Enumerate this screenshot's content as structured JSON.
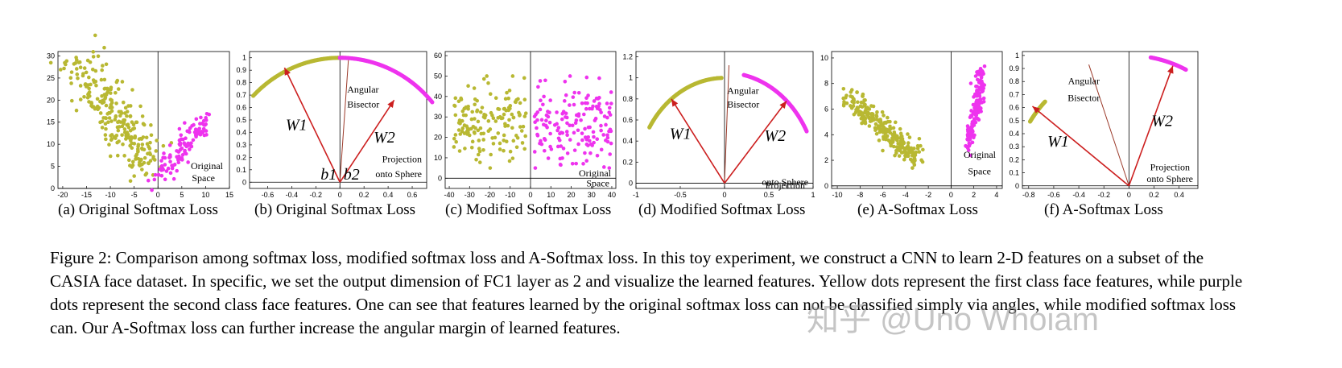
{
  "figure": {
    "caption": "Figure 2: Comparison among softmax loss, modified softmax loss and A-Softmax loss. In this toy experiment, we construct a CNN to learn 2-D features on a subset of the CASIA face dataset. In specific, we set the output dimension of FC1 layer as 2 and visualize the learned features. Yellow dots represent the first class face features, while purple dots represent the second class face features. One can see that features learned by the original softmax loss can not be classified simply via angles, while modified softmax loss can. Our A-Softmax loss can further increase the angular margin of learned features.",
    "watermark": "知乎 @Uno Whoiam",
    "colors": {
      "class1": "#b8b832",
      "class2": "#ee33ee",
      "arrow": "#cc1f1f",
      "bisector": "#9b3a2a"
    }
  },
  "chart_data": [
    {
      "type": "scatter",
      "caption": "(a) Original Softmax Loss",
      "xticks": [
        "-20",
        "-15",
        "-10",
        "-5",
        "0",
        "5",
        "10",
        "15"
      ],
      "yticks": [
        "0",
        "5",
        "10",
        "15",
        "20",
        "25",
        "30"
      ],
      "xlim": [
        -21,
        15
      ],
      "ylim": [
        0,
        31
      ],
      "annotations": [
        "Original",
        "Space"
      ],
      "series": [
        {
          "class": 1,
          "shape": "diagonal band",
          "from": [
            -16,
            28
          ],
          "to": [
            -2,
            5
          ]
        },
        {
          "class": 2,
          "shape": "diagonal band",
          "from": [
            0,
            2
          ],
          "to": [
            10,
            16
          ]
        }
      ]
    },
    {
      "type": "scatter",
      "caption": "(b) Original Softmax Loss",
      "xticks": [
        "-0.6",
        "-0.4",
        "-0.2",
        "0",
        "0.2",
        "0.4",
        "0.6"
      ],
      "yticks": [
        "0",
        "0.1",
        "0.2",
        "0.3",
        "0.4",
        "0.5",
        "0.6",
        "0.7",
        "0.8",
        "0.9",
        "1"
      ],
      "xlim": [
        -0.75,
        0.72
      ],
      "ylim": [
        -0.05,
        1.05
      ],
      "annotations": [
        "Angular",
        "Bisector",
        "Projection",
        "onto Sphere"
      ],
      "weights": [
        "W1",
        "W2"
      ],
      "biases": [
        "b1",
        "b2"
      ],
      "arc": [
        {
          "class": 1,
          "theta_deg": [
            86,
            136
          ]
        },
        {
          "class": 2,
          "theta_deg": [
            40,
            90
          ]
        }
      ]
    },
    {
      "type": "scatter",
      "caption": "(c) Modified Softmax Loss",
      "xticks": [
        "-40",
        "-30",
        "-20",
        "-10",
        "0",
        "10",
        "20",
        "30",
        "40"
      ],
      "yticks": [
        "0",
        "10",
        "20",
        "30",
        "40",
        "50",
        "60"
      ],
      "xlim": [
        -42,
        42
      ],
      "ylim": [
        -5,
        62
      ],
      "annotations": [
        "Original",
        "Space"
      ],
      "series": [
        {
          "class": 1,
          "shape": "cluster",
          "x_range": [
            -38,
            -2
          ],
          "y_range": [
            5,
            50
          ]
        },
        {
          "class": 2,
          "shape": "cluster",
          "x_range": [
            2,
            40
          ],
          "y_range": [
            5,
            50
          ]
        }
      ]
    },
    {
      "type": "scatter",
      "caption": "(d) Modified Softmax Loss",
      "xticks": [
        "-1",
        "-0.5",
        "0",
        "0.5",
        "1"
      ],
      "yticks": [
        "0",
        "0.2",
        "0.4",
        "0.6",
        "0.8",
        "1",
        "1.2"
      ],
      "xlim": [
        -1,
        1
      ],
      "ylim": [
        -0.05,
        1.25
      ],
      "annotations": [
        "Angular",
        "Bisector",
        "Projection",
        "onto Sphere"
      ],
      "weights": [
        "W1",
        "W2"
      ],
      "arc": [
        {
          "class": 1,
          "theta_deg": [
            92,
            148
          ]
        },
        {
          "class": 2,
          "theta_deg": [
            28,
            78
          ]
        }
      ]
    },
    {
      "type": "scatter",
      "caption": "(e) A-Softmax Loss",
      "xticks": [
        "-10",
        "-8",
        "-6",
        "-4",
        "-2",
        "0",
        "2",
        "4"
      ],
      "yticks": [
        "0",
        "2",
        "4",
        "6",
        "8",
        "10"
      ],
      "xlim": [
        -10.5,
        4.5
      ],
      "ylim": [
        -0.2,
        10.5
      ],
      "annotations": [
        "Original",
        "Space"
      ],
      "series": [
        {
          "class": 1,
          "shape": "diagonal band",
          "from": [
            -9,
            7
          ],
          "to": [
            -3,
            2
          ]
        },
        {
          "class": 2,
          "shape": "vertical band",
          "from": [
            1.5,
            3
          ],
          "to": [
            2.8,
            9
          ]
        }
      ]
    },
    {
      "type": "scatter",
      "caption": "(f) A-Softmax Loss",
      "xticks": [
        "-0.8",
        "-0.6",
        "-0.4",
        "-0.2",
        "0",
        "0.2",
        "0.4"
      ],
      "yticks": [
        "0",
        "0.1",
        "0.2",
        "0.3",
        "0.4",
        "0.5",
        "0.6",
        "0.7",
        "0.8",
        "0.9",
        "1"
      ],
      "xlim": [
        -0.85,
        0.55
      ],
      "ylim": [
        -0.02,
        1.03
      ],
      "annotations": [
        "Angular",
        "Bisector",
        "Projection",
        "onto Sphere"
      ],
      "weights": [
        "W1",
        "W2"
      ],
      "arc": [
        {
          "class": 1,
          "theta_deg": [
            136,
            148
          ]
        },
        {
          "class": 2,
          "theta_deg": [
            63,
            80
          ]
        }
      ]
    }
  ]
}
